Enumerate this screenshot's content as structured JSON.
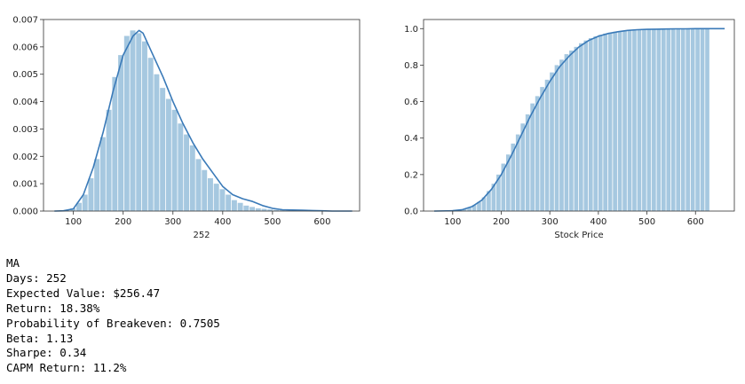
{
  "chart_data": [
    {
      "type": "bar",
      "title": "",
      "xlabel": "252",
      "ylabel": "",
      "xlim": [
        40,
        675
      ],
      "ylim": [
        0,
        0.007
      ],
      "xticks": [
        100,
        200,
        300,
        400,
        500,
        600
      ],
      "yticks": [
        0.0,
        0.001,
        0.002,
        0.003,
        0.004,
        0.005,
        0.006,
        0.007
      ],
      "ytick_labels": [
        "0.000",
        "0.001",
        "0.002",
        "0.003",
        "0.004",
        "0.005",
        "0.006",
        "0.007"
      ],
      "bar_width": 12,
      "bars": {
        "x": [
          64,
          76,
          88,
          100,
          112,
          124,
          136,
          148,
          160,
          172,
          184,
          196,
          208,
          220,
          232,
          244,
          256,
          268,
          280,
          292,
          304,
          316,
          328,
          340,
          352,
          364,
          376,
          388,
          400,
          412,
          424,
          436,
          448,
          460,
          472,
          484,
          496,
          508,
          520,
          532,
          544,
          556,
          568,
          580,
          592,
          604,
          616,
          628,
          640,
          652
        ],
        "values": [
          0.0,
          0.0,
          2e-05,
          0.0001,
          0.0003,
          0.0006,
          0.0012,
          0.0019,
          0.0027,
          0.0037,
          0.0049,
          0.0057,
          0.0064,
          0.0066,
          0.0065,
          0.0062,
          0.0056,
          0.005,
          0.0045,
          0.0041,
          0.0037,
          0.0032,
          0.0028,
          0.0024,
          0.0019,
          0.0015,
          0.0012,
          0.001,
          0.0008,
          0.0006,
          0.0004,
          0.0003,
          0.0002,
          0.00015,
          0.0001,
          8e-05,
          6e-05,
          4e-05,
          3e-05,
          2e-05,
          2e-05,
          1e-05,
          1e-05,
          1e-05,
          1e-05,
          0.0,
          0.0,
          0.0,
          0.0,
          0.0
        ]
      },
      "kde": {
        "x": [
          62,
          80,
          100,
          120,
          140,
          160,
          180,
          200,
          220,
          232,
          240,
          260,
          280,
          300,
          320,
          340,
          360,
          380,
          400,
          420,
          440,
          460,
          480,
          500,
          520,
          540,
          560,
          580,
          600,
          620,
          640,
          660
        ],
        "y": [
          0.0,
          1e-05,
          8e-05,
          0.0006,
          0.0016,
          0.0029,
          0.0044,
          0.0057,
          0.0064,
          0.0066,
          0.0065,
          0.0057,
          0.0049,
          0.004,
          0.0032,
          0.0025,
          0.0019,
          0.0014,
          0.0009,
          0.0006,
          0.00045,
          0.00035,
          0.0002,
          0.0001,
          5e-05,
          4e-05,
          3e-05,
          2e-05,
          1e-05,
          0.0,
          0.0,
          0.0
        ]
      },
      "colors": {
        "bars": "#a6c8e0",
        "line": "#3a7ab8"
      }
    },
    {
      "type": "bar",
      "title": "",
      "xlabel": "Stock Price",
      "ylabel": "",
      "xlim": [
        40,
        680
      ],
      "ylim": [
        0,
        1.05
      ],
      "xticks": [
        100,
        200,
        300,
        400,
        500,
        600
      ],
      "yticks": [
        0.0,
        0.2,
        0.4,
        0.6,
        0.8,
        1.0
      ],
      "ytick_labels": [
        "0.0",
        "0.2",
        "0.4",
        "0.6",
        "0.8",
        "1.0"
      ],
      "bar_width": 10,
      "bars": {
        "x": [
          65,
          75,
          85,
          95,
          105,
          115,
          125,
          135,
          145,
          155,
          165,
          175,
          185,
          195,
          205,
          215,
          225,
          235,
          245,
          255,
          265,
          275,
          285,
          295,
          305,
          315,
          325,
          335,
          345,
          355,
          365,
          375,
          385,
          395,
          405,
          415,
          425,
          435,
          445,
          455,
          465,
          475,
          485,
          495,
          505,
          515,
          525,
          535,
          545,
          555,
          565,
          575,
          585,
          595,
          605,
          615,
          625
        ],
        "values": [
          0.0,
          0.0,
          0.0,
          0.001,
          0.003,
          0.006,
          0.012,
          0.02,
          0.033,
          0.05,
          0.075,
          0.11,
          0.15,
          0.2,
          0.26,
          0.31,
          0.37,
          0.42,
          0.48,
          0.53,
          0.59,
          0.63,
          0.68,
          0.72,
          0.76,
          0.8,
          0.83,
          0.86,
          0.88,
          0.9,
          0.92,
          0.935,
          0.948,
          0.958,
          0.966,
          0.973,
          0.978,
          0.983,
          0.986,
          0.989,
          0.991,
          0.993,
          0.994,
          0.995,
          0.996,
          0.997,
          0.998,
          0.998,
          0.999,
          0.999,
          0.999,
          0.999,
          1.0,
          1.0,
          1.0,
          1.0,
          1.0
        ]
      },
      "cdf": {
        "x": [
          62,
          100,
          120,
          140,
          160,
          180,
          200,
          220,
          240,
          260,
          280,
          300,
          320,
          340,
          360,
          380,
          400,
          420,
          440,
          460,
          480,
          500,
          520,
          540,
          560,
          580,
          600,
          620,
          640,
          660
        ],
        "y": [
          0.0,
          0.002,
          0.008,
          0.025,
          0.06,
          0.12,
          0.2,
          0.3,
          0.41,
          0.52,
          0.62,
          0.71,
          0.79,
          0.85,
          0.9,
          0.935,
          0.958,
          0.973,
          0.983,
          0.99,
          0.994,
          0.996,
          0.997,
          0.998,
          0.999,
          0.999,
          1.0,
          1.0,
          1.0,
          1.0
        ]
      },
      "colors": {
        "bars": "#a6c8e0",
        "line": "#3a7ab8"
      }
    }
  ],
  "output": {
    "lines": [
      "MA",
      "Days: 252",
      "Expected Value: $256.47",
      "Return: 18.38%",
      "Probability of Breakeven: 0.7505",
      "Beta: 1.13",
      "Sharpe: 0.34",
      "CAPM Return: 11.2%"
    ]
  }
}
